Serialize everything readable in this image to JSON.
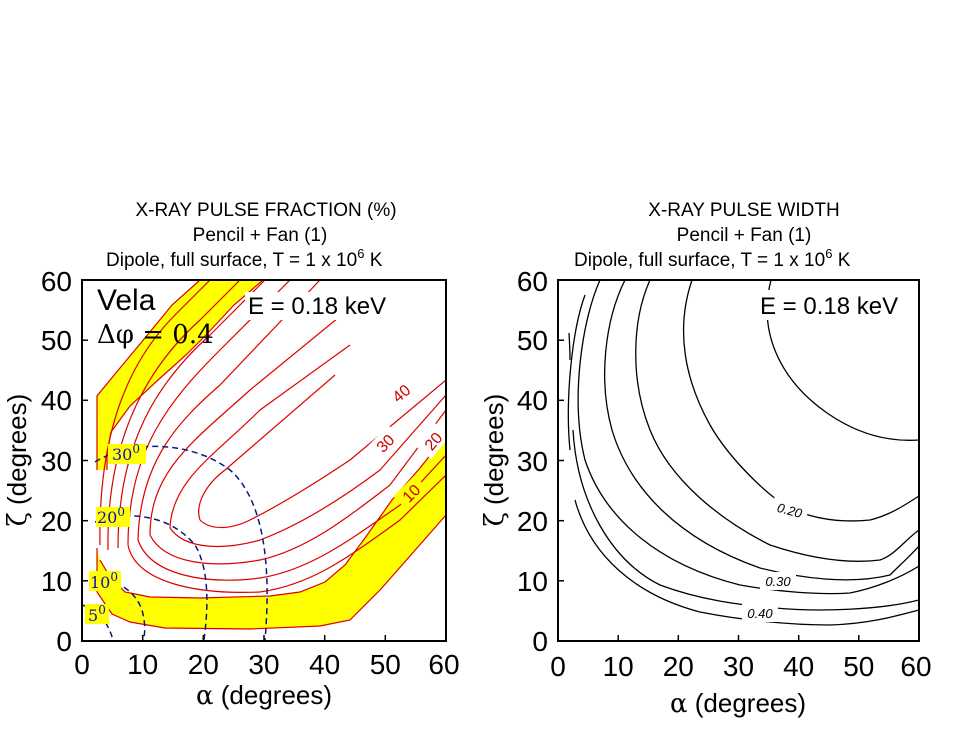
{
  "chart_data": [
    {
      "type": "contour",
      "title": "X-RAY PULSE FRACTION (%)",
      "subtitle1": "Pencil + Fan (1)",
      "subtitle2": "Dipole, full surface,  T = 1 x 10",
      "subtitle2_exp": "6",
      "subtitle2_unit": " K",
      "xlabel_sym": "α",
      "xlabel": " (degrees)",
      "ylabel_sym": "ζ",
      "ylabel": " (degrees)",
      "xlim": [
        0,
        60
      ],
      "ylim": [
        0,
        60
      ],
      "xticks": [
        "0",
        "10",
        "20",
        "30",
        "40",
        "50",
        "60"
      ],
      "yticks": [
        "0",
        "10",
        "20",
        "30",
        "40",
        "50",
        "60"
      ],
      "annotation_name": "Vela",
      "annotation_dphi": "Δφ = 0.4",
      "annotation_energy": "E = 0.18 keV",
      "contour_labels": [
        "40",
        "30",
        "20",
        "10"
      ],
      "observed_band_color": "#ffff00",
      "contour_color": "#dd0000",
      "dashed_color": "#0a1a7a",
      "dashed_labels": [
        {
          "base": "30",
          "exp": "0",
          "angle_deg": 30
        },
        {
          "base": "20",
          "exp": "0",
          "angle_deg": 20
        },
        {
          "base": "10",
          "exp": "0",
          "angle_deg": 10
        },
        {
          "base": "5",
          "exp": "0",
          "angle_deg": 5
        }
      ]
    },
    {
      "type": "contour",
      "title": "X-RAY PULSE WIDTH",
      "subtitle1": "Pencil + Fan (1)",
      "subtitle2": "Dipole, full surface,  T = 1 x 10",
      "subtitle2_exp": "6",
      "subtitle2_unit": " K",
      "xlabel_sym": "α",
      "xlabel": " (degrees)",
      "ylabel_sym": "ζ",
      "ylabel": " (degrees)",
      "xlim": [
        0,
        60
      ],
      "ylim": [
        0,
        60
      ],
      "xticks": [
        "0",
        "10",
        "20",
        "30",
        "40",
        "50",
        "60"
      ],
      "yticks": [
        "0",
        "10",
        "20",
        "30",
        "40",
        "50",
        "60"
      ],
      "annotation_energy": "E = 0.18 keV",
      "contour_labels": [
        "0.20",
        "0.30",
        "0.40"
      ],
      "contour_color": "#000000"
    }
  ]
}
